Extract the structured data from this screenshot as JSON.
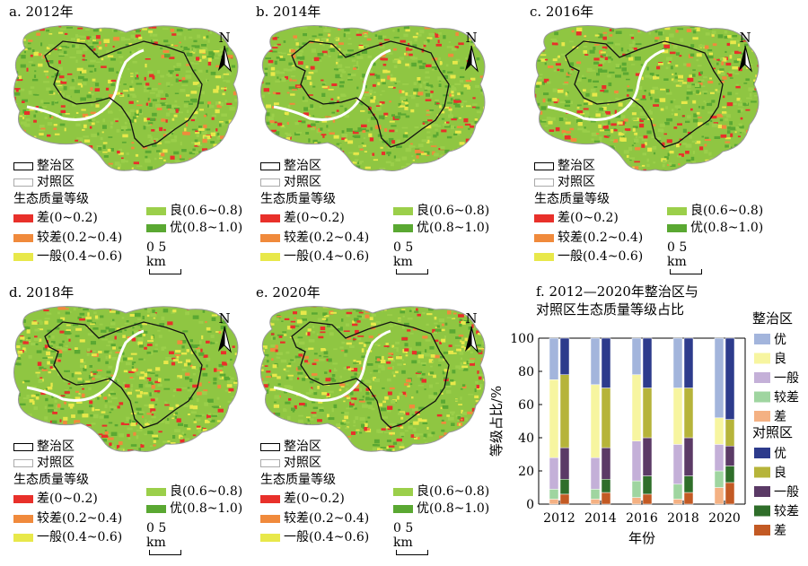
{
  "panels": [
    {
      "title": "a. 2012年"
    },
    {
      "title": "b. 2014年"
    },
    {
      "title": "c. 2016年"
    },
    {
      "title": "d. 2018年"
    },
    {
      "title": "e. 2020年"
    }
  ],
  "north_label": "N",
  "map_legend": {
    "treated_area": "整治区",
    "control_area": "对照区",
    "grade_title": "生态质量等级",
    "grades": [
      {
        "label": "差(0~0.2)",
        "color": "#e8302a"
      },
      {
        "label": "较差(0.2~0.4)",
        "color": "#f08a3c"
      },
      {
        "label": "一般(0.4~0.6)",
        "color": "#e8e84a"
      },
      {
        "label": "良(0.6~0.8)",
        "color": "#9bcf4a"
      },
      {
        "label": "优(0.8~1.0)",
        "color": "#5aa832"
      }
    ],
    "scale_zero": "0",
    "scale_label": "5 km"
  },
  "chart_title_line1": "f. 2012—2020年整治区与",
  "chart_title_line2": "对照区生态质量等级占比",
  "chart_data": {
    "type": "bar",
    "subtype": "stacked",
    "categories": [
      "2012",
      "2014",
      "2016",
      "2018",
      "2020"
    ],
    "xlabel": "年份",
    "ylabel": "等级占比/%",
    "ylim": [
      0,
      100
    ],
    "yticks": [
      "0",
      "20",
      "40",
      "60",
      "80",
      "100"
    ],
    "legend_group_treated": "整治区",
    "legend_group_control": "对照区",
    "treated_series": [
      {
        "name": "差",
        "color": "#f4b183",
        "values": [
          3,
          3,
          4,
          3,
          10
        ]
      },
      {
        "name": "较差",
        "color": "#9fd5a0",
        "values": [
          6,
          6,
          10,
          9,
          10
        ]
      },
      {
        "name": "一般",
        "color": "#c4b0d8",
        "values": [
          19,
          19,
          24,
          24,
          16
        ]
      },
      {
        "name": "良",
        "color": "#f7f5a0",
        "values": [
          47,
          44,
          40,
          34,
          16
        ]
      },
      {
        "name": "优",
        "color": "#a3b5dc",
        "values": [
          25,
          28,
          22,
          30,
          48
        ]
      }
    ],
    "control_series": [
      {
        "name": "差",
        "color": "#c35a24",
        "values": [
          6,
          7,
          6,
          7,
          13
        ]
      },
      {
        "name": "较差",
        "color": "#2f6e2a",
        "values": [
          9,
          8,
          11,
          10,
          10
        ]
      },
      {
        "name": "一般",
        "color": "#5b3a66",
        "values": [
          19,
          19,
          23,
          23,
          12
        ]
      },
      {
        "name": "良",
        "color": "#b6b43a",
        "values": [
          44,
          36,
          30,
          30,
          16
        ]
      },
      {
        "name": "优",
        "color": "#2d3b8c",
        "values": [
          22,
          30,
          30,
          30,
          49
        ]
      }
    ]
  }
}
